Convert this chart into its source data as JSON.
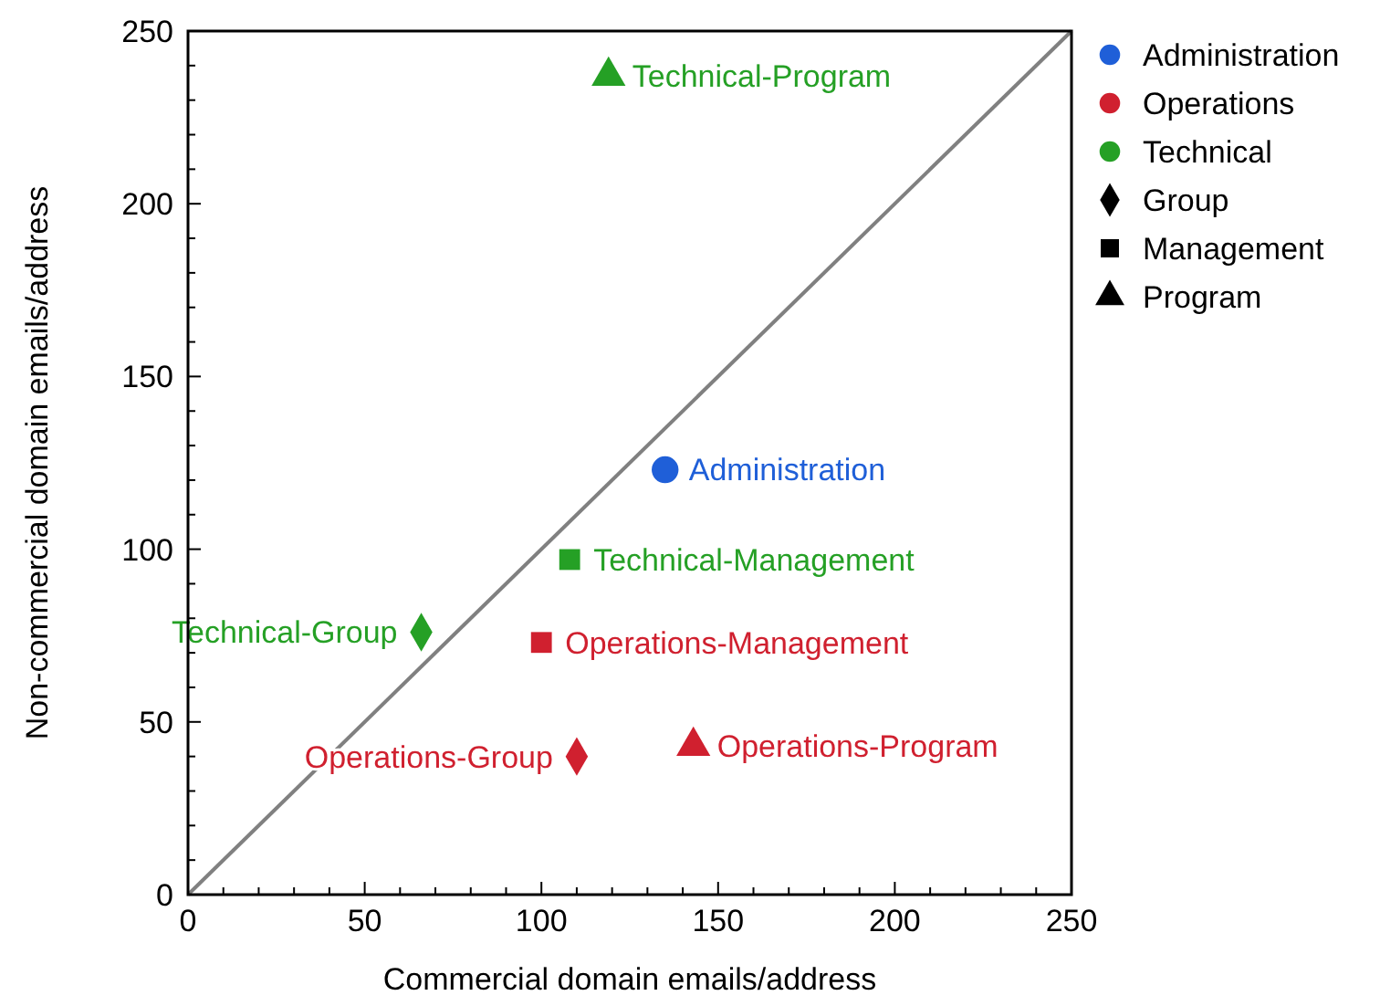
{
  "chart_data": {
    "type": "scatter",
    "xlabel": "Commercial domain emails/address",
    "ylabel": "Non-commercial domain emails/address",
    "xlim": [
      0,
      250
    ],
    "ylim": [
      0,
      250
    ],
    "xticks": [
      0,
      50,
      100,
      150,
      200,
      250
    ],
    "yticks": [
      0,
      50,
      100,
      150,
      200,
      250
    ],
    "grid": false,
    "legend": "right",
    "series": [
      {
        "name": "Administration",
        "color": "#1f5fd8",
        "marker": "circle",
        "x": [
          135
        ],
        "values": [
          123
        ]
      },
      {
        "name": "Operations-Program",
        "color": "#d0202f",
        "marker": "triangle",
        "x": [
          143
        ],
        "values": [
          43
        ]
      },
      {
        "name": "Operations-Group",
        "color": "#d0202f",
        "marker": "diamond",
        "x": [
          110
        ],
        "values": [
          40
        ]
      },
      {
        "name": "Operations-Management",
        "color": "#d0202f",
        "marker": "square",
        "x": [
          100
        ],
        "values": [
          73
        ]
      },
      {
        "name": "Technical-Group",
        "color": "#25a025",
        "marker": "diamond",
        "x": [
          66
        ],
        "values": [
          76
        ]
      },
      {
        "name": "Technical-Management",
        "color": "#25a025",
        "marker": "square",
        "x": [
          108
        ],
        "values": [
          97
        ]
      },
      {
        "name": "Technical-Program",
        "color": "#25a025",
        "marker": "triangle",
        "x": [
          119
        ],
        "values": [
          237
        ]
      },
      {
        "name": "Administration",
        "color": "#1f5fd8",
        "marker": "circle"
      },
      {
        "name": "Operations",
        "color": "#d0202f",
        "marker": "circle"
      },
      {
        "name": "Technical",
        "color": "#25a025",
        "marker": "circle"
      },
      {
        "name": "Group",
        "color": "#000000",
        "marker": "diamond"
      },
      {
        "name": "Management",
        "color": "#000000",
        "marker": "square"
      },
      {
        "name": "Program",
        "color": "#000000",
        "marker": "triangle"
      },
      {
        "type": "line",
        "color": "#808080",
        "x": [
          0,
          250
        ],
        "values": [
          0,
          250
        ],
        "marker": "none"
      }
    ]
  }
}
